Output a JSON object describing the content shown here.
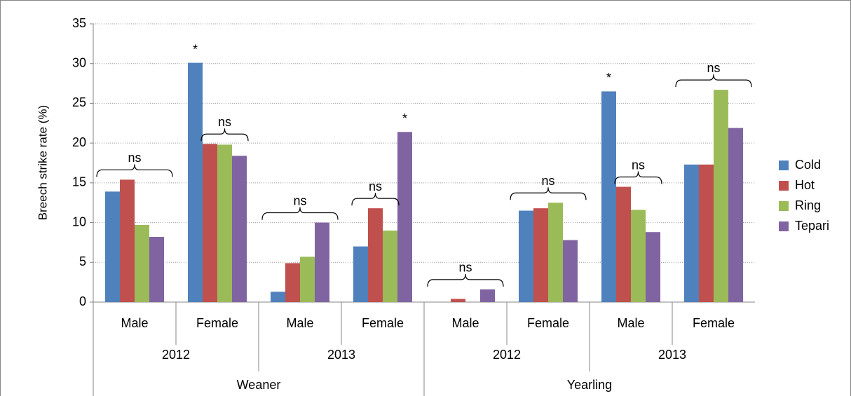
{
  "chart_data": {
    "type": "bar",
    "y_label": "Breech strike rate (%)",
    "categories": [
      "Male",
      "Female",
      "Male",
      "Female",
      "Male",
      "Female",
      "Male",
      "Female"
    ],
    "year_groups": [
      "2012",
      "2013",
      "2012",
      "2013"
    ],
    "age_groups": [
      "Weaner",
      "Yearling"
    ],
    "series": [
      {
        "name": "Cold",
        "color": "#4f81bd",
        "values": [
          13.9,
          30.1,
          1.3,
          7.0,
          0,
          11.5,
          26.5,
          17.3
        ]
      },
      {
        "name": "Hot",
        "color": "#c0504d",
        "values": [
          15.4,
          19.9,
          4.9,
          11.8,
          0.4,
          11.8,
          14.5,
          17.3
        ]
      },
      {
        "name": "Ring",
        "color": "#9bbb59",
        "values": [
          9.7,
          19.8,
          5.7,
          9.0,
          0,
          12.5,
          11.6,
          26.7
        ]
      },
      {
        "name": "Tepari",
        "color": "#8064a2",
        "values": [
          8.2,
          18.4,
          10.0,
          21.4,
          1.6,
          7.8,
          8.8,
          21.9
        ]
      }
    ],
    "ylim": [
      0,
      35
    ],
    "yticks": [
      0,
      5,
      10,
      15,
      20,
      25,
      30,
      35
    ],
    "grid": true,
    "legend": "right",
    "annotations": [
      {
        "text": "ns",
        "category": 0
      },
      {
        "text": "*",
        "category": 1,
        "series": 0
      },
      {
        "text": "ns",
        "category": 1
      },
      {
        "text": "ns",
        "category": 2
      },
      {
        "text": "ns",
        "category": 3
      },
      {
        "text": "*",
        "category": 3,
        "series": 3
      },
      {
        "text": "ns",
        "category": 4
      },
      {
        "text": "ns",
        "category": 5
      },
      {
        "text": "*",
        "category": 6,
        "series": 0
      },
      {
        "text": "ns",
        "category": 6
      },
      {
        "text": "ns",
        "category": 7
      }
    ]
  }
}
